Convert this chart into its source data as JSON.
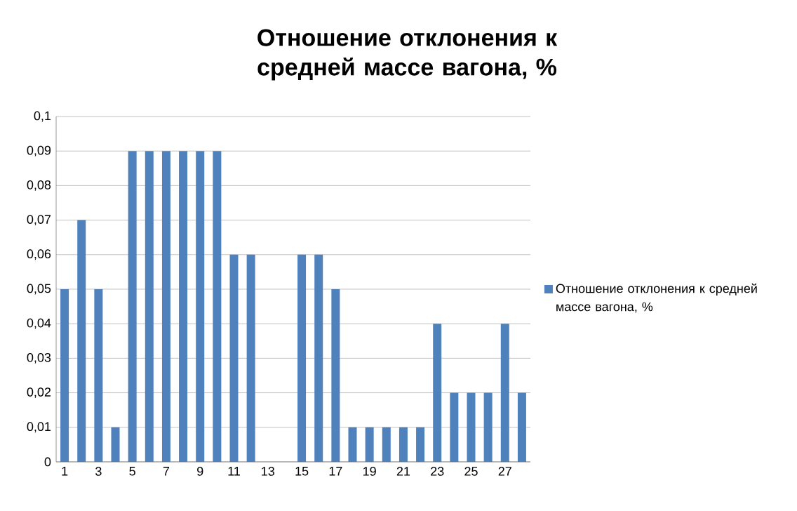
{
  "chart_data": {
    "type": "bar",
    "title": "Отношение отклонения к средней массе вагона, %",
    "categories": [
      "1",
      null,
      "3",
      null,
      "5",
      null,
      "7",
      null,
      "9",
      null,
      "11",
      null,
      "13",
      null,
      "15",
      null,
      "17",
      null,
      "19",
      null,
      "21",
      null,
      "23",
      null,
      "25",
      null,
      "27",
      null
    ],
    "series": [
      {
        "name": "Отношение отклонения к средней массе вагона, %",
        "color": "#4f81bd",
        "values": [
          0.05,
          0.07,
          0.05,
          0.01,
          0.09,
          0.09,
          0.09,
          0.09,
          0.09,
          0.09,
          0.06,
          0.06,
          0,
          0,
          0.06,
          0.06,
          0.05,
          0.01,
          0.01,
          0.01,
          0.01,
          0.01,
          0.04,
          0.02,
          0.02,
          0.02,
          0.04,
          0.02
        ]
      }
    ],
    "ylim": [
      0,
      0.1
    ],
    "yticks": [
      0,
      {
        "value": 0.01,
        "label": "0,01"
      },
      {
        "value": 0.02,
        "label": "0,02"
      },
      {
        "value": 0.03,
        "label": "0,03"
      },
      {
        "value": 0.04,
        "label": "0,04"
      },
      {
        "value": 0.05,
        "label": "0,05"
      },
      {
        "value": 0.06,
        "label": "0,06"
      },
      {
        "value": 0.07,
        "label": "0,07"
      },
      {
        "value": 0.08,
        "label": "0,08"
      },
      {
        "value": 0.09,
        "label": "0,09"
      },
      {
        "value": 0.1,
        "label": "0,1"
      }
    ],
    "grid": "y",
    "legend": "right"
  }
}
